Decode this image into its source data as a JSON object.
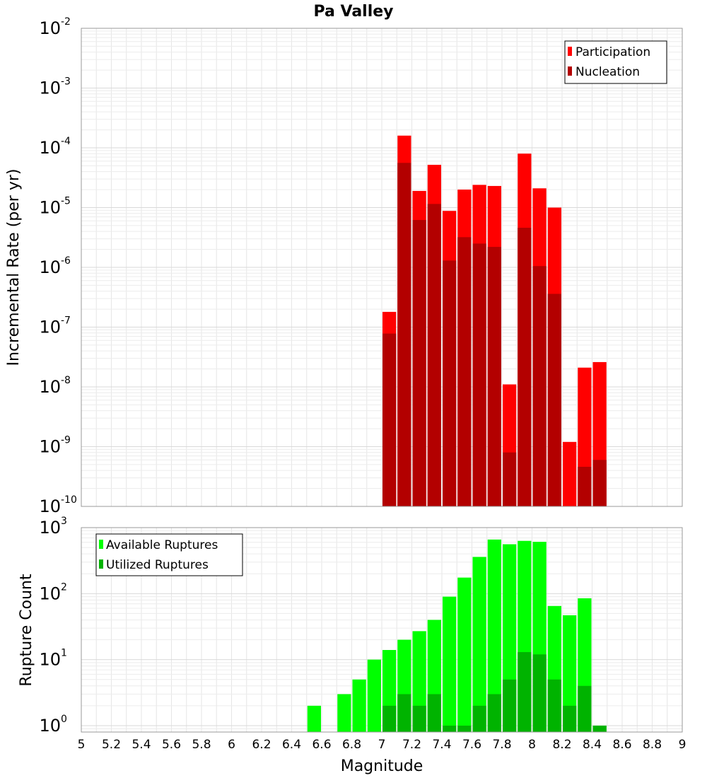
{
  "chart_data": [
    {
      "type": "bar",
      "title": "Pa Valley",
      "xlabel": "",
      "ylabel": "Incremental Rate (per yr)",
      "yscale": "log",
      "ylim": [
        1e-10,
        0.01
      ],
      "xlim": [
        5,
        9
      ],
      "bin_width": 0.1,
      "grid": true,
      "legend_position": "top-right",
      "y_tick_labels": [
        {
          "exponent": -10,
          "base": "10",
          "exp": "-10"
        },
        {
          "exponent": -9,
          "base": "10",
          "exp": "-9"
        },
        {
          "exponent": -8,
          "base": "10",
          "exp": "-8"
        },
        {
          "exponent": -7,
          "base": "10",
          "exp": "-7"
        },
        {
          "exponent": -6,
          "base": "10",
          "exp": "-6"
        },
        {
          "exponent": -5,
          "base": "10",
          "exp": "-5"
        },
        {
          "exponent": -4,
          "base": "10",
          "exp": "-4"
        },
        {
          "exponent": -3,
          "base": "10",
          "exp": "-3"
        },
        {
          "exponent": -2,
          "base": "10",
          "exp": "-2"
        }
      ],
      "x": [
        7.05,
        7.15,
        7.25,
        7.35,
        7.45,
        7.55,
        7.65,
        7.75,
        7.85,
        7.95,
        8.05,
        8.15,
        8.25,
        8.35,
        8.45
      ],
      "series": [
        {
          "name": "Participation",
          "color": "#ff0000",
          "values": [
            1.8e-07,
            0.00016,
            1.9e-05,
            5.2e-05,
            8.8e-06,
            2e-05,
            2.4e-05,
            2.3e-05,
            1.1e-08,
            8e-05,
            2.1e-05,
            1e-05,
            1.2e-09,
            2.1e-08,
            2.6e-08
          ]
        },
        {
          "name": "Nucleation",
          "color": "#b30000",
          "values": [
            7.8e-08,
            5.6e-05,
            6.2e-06,
            1.15e-05,
            1.3e-06,
            3.2e-06,
            2.5e-06,
            2.2e-06,
            8e-10,
            4.6e-06,
            1.05e-06,
            3.6e-07,
            1e-10,
            4.6e-10,
            6e-10
          ]
        }
      ]
    },
    {
      "type": "bar",
      "title": "",
      "xlabel": "Magnitude",
      "ylabel": "Rupture Count",
      "yscale": "log",
      "ylim": [
        0.8,
        1000
      ],
      "xlim": [
        5,
        9
      ],
      "bin_width": 0.1,
      "grid": true,
      "legend_position": "top-left",
      "x_tick_labels": [
        "5",
        "5.2",
        "5.4",
        "5.6",
        "5.8",
        "6",
        "6.2",
        "6.4",
        "6.6",
        "6.8",
        "7",
        "7.2",
        "7.4",
        "7.6",
        "7.8",
        "8",
        "8.2",
        "8.4",
        "8.6",
        "8.8",
        "9"
      ],
      "y_tick_labels": [
        {
          "exponent": 0,
          "base": "10",
          "exp": "0"
        },
        {
          "exponent": 1,
          "base": "10",
          "exp": "1"
        },
        {
          "exponent": 2,
          "base": "10",
          "exp": "2"
        },
        {
          "exponent": 3,
          "base": "10",
          "exp": "3"
        }
      ],
      "x": [
        6.55,
        6.75,
        6.85,
        6.95,
        7.05,
        7.15,
        7.25,
        7.35,
        7.45,
        7.55,
        7.65,
        7.75,
        7.85,
        7.95,
        8.05,
        8.15,
        8.25,
        8.35,
        8.45
      ],
      "series": [
        {
          "name": "Available Ruptures",
          "color": "#00ff00",
          "values": [
            2,
            3,
            5,
            10,
            14,
            20,
            27,
            40,
            90,
            175,
            360,
            660,
            560,
            630,
            610,
            65,
            47,
            85,
            1
          ]
        },
        {
          "name": "Utilized Ruptures",
          "color": "#00b300",
          "values": [
            0,
            0,
            0,
            0,
            2,
            3,
            2,
            3,
            1,
            1,
            2,
            3,
            5,
            13,
            12,
            5,
            2,
            4,
            1
          ]
        }
      ]
    }
  ]
}
